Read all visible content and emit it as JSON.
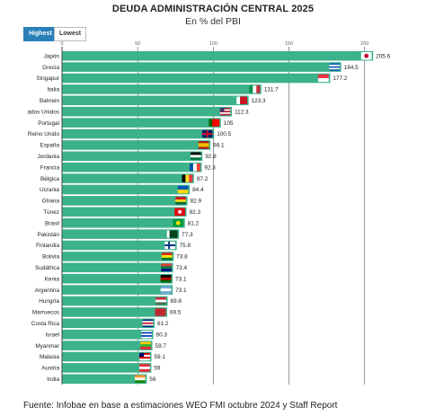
{
  "title": "DEUDA ADMINISTRACIÓN CENTRAL 2025",
  "subtitle": "En % del PBI",
  "buttons": {
    "highest": "Highest",
    "lowest": "Lowest"
  },
  "source": "Fuente: Infobae en base a estimaciones WEO FMI octubre 2024 y Staff Report",
  "chart_data": {
    "type": "bar",
    "orientation": "horizontal",
    "categories": [
      "Japón",
      "Grecia",
      "Singapur",
      "Italia",
      "Bahrein",
      "ados Unidos",
      "Portugal",
      "Reino Unido",
      "España",
      "Jordania",
      "Francia",
      "Bélgica",
      "Ucrania",
      "Ghana",
      "Túnez",
      "Brasil",
      "Pakistán",
      "Finlandia",
      "Bolivia",
      "Sudáfrica",
      "Kenia",
      "Argentina",
      "Hungría",
      "Marruecos",
      "Costa Rica",
      "Israel",
      "Myanmar",
      "Malasia",
      "Austria",
      "India"
    ],
    "values": [
      205.6,
      184.5,
      177.2,
      131.7,
      123.3,
      112.3,
      105,
      100.5,
      98.1,
      92.8,
      92.3,
      87.2,
      84.4,
      82.9,
      82.3,
      81.2,
      77.3,
      75.8,
      73.8,
      73.4,
      73.1,
      73.1,
      69.8,
      69.5,
      61.2,
      60.3,
      59.7,
      59.1,
      59,
      56
    ],
    "value_labels": [
      "205.6",
      "184.5",
      "177.2",
      "131.7",
      "123.3",
      "112.3",
      "105",
      "100.5",
      "98.1",
      "92.8",
      "92.3",
      "87.2",
      "84.4",
      "82.9",
      "82.3",
      "81.2",
      "77.3",
      "75.8",
      "73.8",
      "73.4",
      "73.1",
      "73.1",
      "69.8",
      "69.5",
      "61.2",
      "60.3",
      "59.7",
      "59.1",
      "59",
      "56"
    ],
    "xlim": [
      0,
      215
    ],
    "xticks": [
      0,
      50,
      100,
      150,
      200
    ],
    "xtick_labels": [
      "0",
      "50",
      "100",
      "150",
      "200"
    ],
    "grid": true,
    "bar_color": "#3cb28b",
    "flag_icons": [
      "japan-flag-icon",
      "greece-flag-icon",
      "singapore-flag-icon",
      "italy-flag-icon",
      "bahrain-flag-icon",
      "usa-flag-icon",
      "portugal-flag-icon",
      "uk-flag-icon",
      "spain-flag-icon",
      "jordan-flag-icon",
      "france-flag-icon",
      "belgium-flag-icon",
      "ukraine-flag-icon",
      "ghana-flag-icon",
      "tunisia-flag-icon",
      "brazil-flag-icon",
      "pakistan-flag-icon",
      "finland-flag-icon",
      "bolivia-flag-icon",
      "south-africa-flag-icon",
      "kenya-flag-icon",
      "argentina-flag-icon",
      "hungary-flag-icon",
      "morocco-flag-icon",
      "costa-rica-flag-icon",
      "israel-flag-icon",
      "myanmar-flag-icon",
      "malaysia-flag-icon",
      "austria-flag-icon",
      "india-flag-icon"
    ]
  }
}
